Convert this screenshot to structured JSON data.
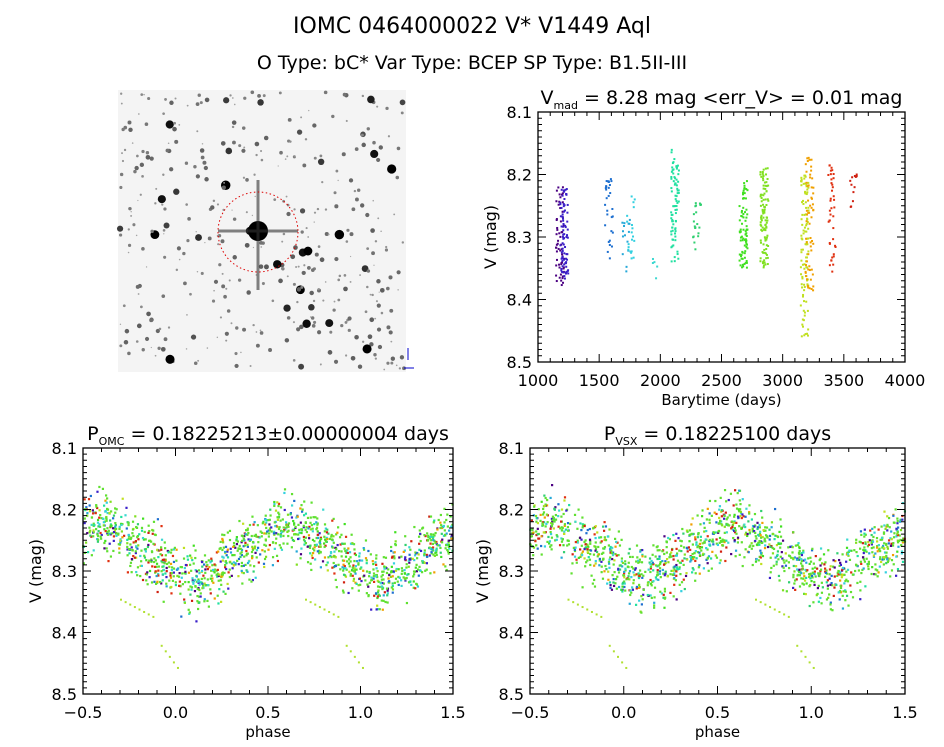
{
  "header": {
    "title": "IOMC 0464000022    V* V1449 Aql",
    "subtitle": "O Type: bC*  Var Type: BCEP  SP Type: B1.5II-III"
  },
  "image": {
    "label": "finding-chart"
  },
  "chart_data": [
    {
      "type": "scatter",
      "title": "V",
      "title_sub": "mad",
      "title_rest": " = 8.28 mag <err_V> = 0.01 mag",
      "xlabel": "Barytime (days)",
      "ylabel": "V (mag)",
      "xlim": [
        1000,
        4000
      ],
      "ylim": [
        8.5,
        8.1
      ],
      "xticks": [
        "1000",
        "1500",
        "2000",
        "2500",
        "3000",
        "3500",
        "4000"
      ],
      "yticks": [
        "8.1",
        "8.2",
        "8.3",
        "8.4",
        "8.5"
      ],
      "seasons": [
        {
          "t": 1180,
          "vmin": 8.22,
          "vmax": 8.38,
          "n": 60,
          "color": "#4b0082"
        },
        {
          "t": 1215,
          "vmin": 8.22,
          "vmax": 8.37,
          "n": 80,
          "color": "#3a1fc8"
        },
        {
          "t": 1580,
          "vmin": 8.2,
          "vmax": 8.34,
          "n": 30,
          "color": "#1d6fd0"
        },
        {
          "t": 1720,
          "vmin": 8.27,
          "vmax": 8.36,
          "n": 15,
          "color": "#25a8d8"
        },
        {
          "t": 1760,
          "vmin": 8.23,
          "vmax": 8.34,
          "n": 20,
          "color": "#33d0e0"
        },
        {
          "t": 1945,
          "vmin": 8.33,
          "vmax": 8.37,
          "n": 5,
          "color": "#3cd8d0"
        },
        {
          "t": 2120,
          "vmin": 8.16,
          "vmax": 8.34,
          "n": 80,
          "color": "#20e0a0"
        },
        {
          "t": 2300,
          "vmin": 8.23,
          "vmax": 8.32,
          "n": 20,
          "color": "#30d070"
        },
        {
          "t": 2680,
          "vmin": 8.21,
          "vmax": 8.35,
          "n": 80,
          "color": "#40e020"
        },
        {
          "t": 2850,
          "vmin": 8.19,
          "vmax": 8.35,
          "n": 100,
          "color": "#80e020"
        },
        {
          "t": 3180,
          "vmin": 8.2,
          "vmax": 8.46,
          "n": 100,
          "color": "#c0e020"
        },
        {
          "t": 3220,
          "vmin": 8.17,
          "vmax": 8.39,
          "n": 60,
          "color": "#f0a000"
        },
        {
          "t": 3400,
          "vmin": 8.18,
          "vmax": 8.36,
          "n": 40,
          "color": "#e03010"
        },
        {
          "t": 3580,
          "vmin": 8.2,
          "vmax": 8.26,
          "n": 12,
          "color": "#d02010"
        }
      ]
    },
    {
      "type": "scatter",
      "title": "P",
      "title_sub": "OMC",
      "title_rest": " = 0.18225213±0.00000004 days",
      "xlabel": "phase",
      "ylabel": "V (mag)",
      "xlim": [
        -0.5,
        1.5
      ],
      "ylim": [
        8.5,
        8.1
      ],
      "xticks": [
        "-0.5",
        "0.0",
        "0.5",
        "1.0",
        "1.5"
      ],
      "yticks": [
        "8.1",
        "8.2",
        "8.3",
        "8.4",
        "8.5"
      ],
      "model": {
        "mean": 8.27,
        "amplitude": 0.05,
        "max_phase": 0.6,
        "min_phase": 0.1,
        "scatter": 0.025
      }
    },
    {
      "type": "scatter",
      "title": "P",
      "title_sub": "VSX",
      "title_rest": " = 0.18225100 days",
      "xlabel": "phase",
      "ylabel": "V (mag)",
      "xlim": [
        -0.5,
        1.5
      ],
      "ylim": [
        8.5,
        8.1
      ],
      "xticks": [
        "-0.5",
        "0.0",
        "0.5",
        "1.0",
        "1.5"
      ],
      "yticks": [
        "8.1",
        "8.2",
        "8.3",
        "8.4",
        "8.5"
      ],
      "model": {
        "mean": 8.27,
        "amplitude": 0.05,
        "max_phase": 0.6,
        "min_phase": 0.1,
        "scatter": 0.025
      }
    }
  ]
}
